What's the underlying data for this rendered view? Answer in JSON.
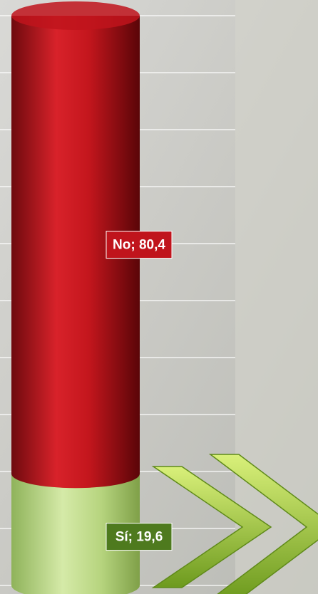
{
  "chart_data": {
    "type": "stacked-cylinder",
    "categories": [
      null
    ],
    "series": [
      {
        "name": "Sí",
        "color": "#9ccc5a",
        "values": [
          19.6
        ],
        "value_labels": [
          "Sí; 19,6"
        ]
      },
      {
        "name": "No",
        "color": "#c0141c",
        "values": [
          80.4
        ],
        "value_labels": [
          "No; 80,4"
        ]
      }
    ],
    "ylim": [
      0,
      100
    ],
    "yticks": [
      0,
      10,
      20,
      30,
      40,
      50,
      60,
      70,
      80,
      90,
      100
    ],
    "grid": true
  }
}
